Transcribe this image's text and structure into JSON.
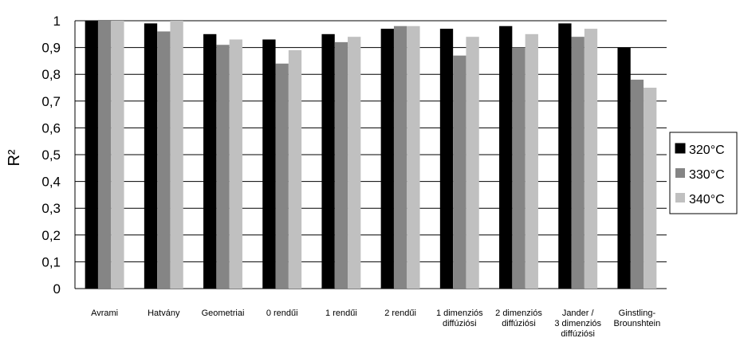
{
  "chart_data": {
    "type": "bar",
    "ylabel": "R²",
    "ylim": [
      0,
      1
    ],
    "ytick_step": 0.1,
    "y_ticks": [
      "0",
      "0,1",
      "0,2",
      "0,3",
      "0,4",
      "0,5",
      "0,6",
      "0,7",
      "0,8",
      "0,9",
      "1"
    ],
    "grid": "horizontal",
    "legend_position": "right",
    "categories": [
      [
        "Avrami"
      ],
      [
        "Hatvány"
      ],
      [
        "Geometriai"
      ],
      [
        "0 rendűi"
      ],
      [
        "1 rendűi"
      ],
      [
        "2 rendűi"
      ],
      [
        "1 dimenziós",
        "diffúziósi"
      ],
      [
        "2 dimenziós",
        "diffúziósi"
      ],
      [
        "Jander /",
        "3 dimenziós",
        "diffúziósi"
      ],
      [
        "Ginstling-",
        "Brounshtein"
      ]
    ],
    "series": [
      {
        "name": "320°C",
        "color": "#000000",
        "values": [
          1.0,
          0.99,
          0.95,
          0.93,
          0.95,
          0.97,
          0.97,
          0.98,
          0.99,
          0.9
        ]
      },
      {
        "name": "330°C",
        "color": "#858585",
        "values": [
          1.0,
          0.96,
          0.91,
          0.84,
          0.92,
          0.98,
          0.87,
          0.9,
          0.94,
          0.78
        ]
      },
      {
        "name": "340°C",
        "color": "#c0c0c0",
        "values": [
          1.0,
          1.0,
          0.93,
          0.89,
          0.94,
          0.98,
          0.94,
          0.95,
          0.97,
          0.75
        ]
      }
    ]
  }
}
